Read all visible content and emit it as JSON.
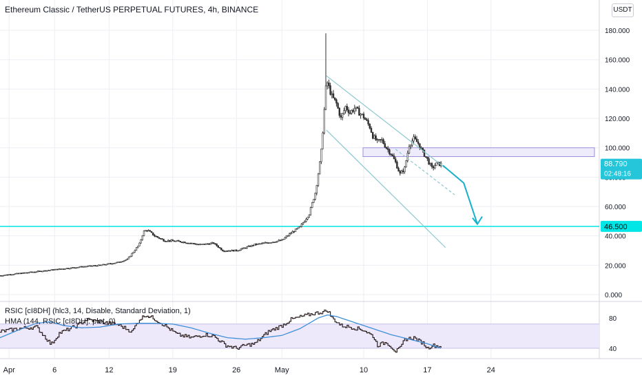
{
  "header": {
    "title": "Ethereum Classic / TetherUS PERPETUAL FUTURES, 4h, BINANCE",
    "currency": "USDT"
  },
  "colors": {
    "up": "#26a69a",
    "down": "#ef5350",
    "candle": "#2e2e2e",
    "channel": "#8cc7d0",
    "cyan": "#00e5e5",
    "zone_fill": "#ece9fb",
    "zone_border": "#9c8ed9",
    "arrow": "#17b1c9",
    "rsi_line": "#2b1e1e",
    "rsi_signal": "#3f8fd8",
    "rsi_band": "#ede9fb"
  },
  "indicators": {
    "rsi_label": "RSIC [cI8DH] (hlc3, 14, Disable, Standard Deviation, 1)",
    "hma_label": "HMA (144, RSIC [cI8DH]: plot_0)"
  },
  "price_badges": {
    "last_price": "88.790",
    "countdown": "02:48:16",
    "level": "46.500"
  },
  "chart_data": [
    {
      "type": "candlestick",
      "title": "Ethereum Classic / TetherUS PERPETUAL FUTURES, 4h, BINANCE",
      "y_ticks": [
        "0.000",
        "20.000",
        "40.000",
        "60.000",
        "80.000",
        "100.000",
        "120.000",
        "140.000",
        "160.000",
        "180.000"
      ],
      "x_ticks": [
        "Apr",
        "6",
        "12",
        "19",
        "26",
        "May",
        "10",
        "17",
        "24"
      ],
      "x_tick_days": [
        1,
        6,
        12,
        19,
        26,
        31,
        40,
        47,
        54
      ],
      "ylim": [
        0,
        180
      ],
      "grid": true,
      "anchors_day_close": [
        [
          0,
          13
        ],
        [
          3,
          15
        ],
        [
          6,
          17
        ],
        [
          9,
          19
        ],
        [
          11,
          20
        ],
        [
          13,
          22
        ],
        [
          14,
          24
        ],
        [
          15.3,
          34
        ],
        [
          15.8,
          43
        ],
        [
          16.2,
          44
        ],
        [
          17,
          40
        ],
        [
          18,
          37
        ],
        [
          20,
          36
        ],
        [
          22,
          34
        ],
        [
          23.5,
          35
        ],
        [
          24.5,
          30
        ],
        [
          26,
          30
        ],
        [
          28,
          34
        ],
        [
          30,
          36
        ],
        [
          31,
          37
        ],
        [
          32,
          42
        ],
        [
          33,
          46
        ],
        [
          34,
          55
        ],
        [
          34.7,
          70
        ],
        [
          35.3,
          95
        ],
        [
          35.6,
          120
        ],
        [
          35.9,
          146
        ],
        [
          36.5,
          135
        ],
        [
          37,
          130
        ],
        [
          37.5,
          120
        ],
        [
          38,
          128
        ],
        [
          38.5,
          124
        ],
        [
          39,
          127
        ],
        [
          40,
          121
        ],
        [
          40.7,
          114
        ],
        [
          41,
          108
        ],
        [
          41.5,
          104
        ],
        [
          42,
          105
        ],
        [
          42.5,
          100
        ],
        [
          43,
          96
        ],
        [
          43.5,
          90
        ],
        [
          44,
          82
        ],
        [
          44.5,
          86
        ],
        [
          45,
          102
        ],
        [
          45.5,
          106
        ],
        [
          46,
          103
        ],
        [
          46.5,
          97
        ],
        [
          47,
          92
        ],
        [
          47.5,
          86
        ],
        [
          48,
          89
        ],
        [
          48.5,
          88.79
        ]
      ],
      "spike_high": 178,
      "spike_day": 35.9,
      "last_price": 88.79,
      "support_level": 46.5,
      "resistance_zone": [
        94,
        100
      ],
      "zone_days": [
        35.5,
        55.5
      ],
      "channel_upper": [
        [
          35.9,
          149
        ],
        [
          49,
          86
        ]
      ],
      "channel_lower": [
        [
          35.9,
          112
        ],
        [
          49,
          32
        ]
      ],
      "channel_mid": [
        [
          43.5,
          99
        ],
        [
          50,
          68
        ]
      ],
      "projection": [
        [
          48.7,
          88
        ],
        [
          51,
          76
        ],
        [
          52.5,
          48
        ]
      ]
    },
    {
      "type": "line",
      "title": "RSIC [cI8DH] (hlc3, 14, Disable, Standard Deviation, 1)",
      "y_ticks": [
        "40",
        "80"
      ],
      "ylim": [
        30,
        92
      ],
      "band": [
        40,
        72
      ],
      "series": [
        {
          "name": "RSIC [cI8DH]",
          "anchors": [
            [
              0,
              62
            ],
            [
              2,
              66
            ],
            [
              4,
              68
            ],
            [
              5,
              54
            ],
            [
              5.6,
              45
            ],
            [
              6.5,
              60
            ],
            [
              8.5,
              70
            ],
            [
              9.5,
              78
            ],
            [
              11,
              75
            ],
            [
              13,
              71
            ],
            [
              14.5,
              62
            ],
            [
              15.3,
              78
            ],
            [
              16,
              84
            ],
            [
              16.8,
              80
            ],
            [
              18,
              71
            ],
            [
              19.5,
              58
            ],
            [
              21,
              54
            ],
            [
              22.5,
              58
            ],
            [
              23.5,
              56
            ],
            [
              24.8,
              44
            ],
            [
              26,
              40
            ],
            [
              27,
              44
            ],
            [
              28,
              46
            ],
            [
              29.5,
              62
            ],
            [
              31,
              70
            ],
            [
              32,
              78
            ],
            [
              33.5,
              83
            ],
            [
              34.5,
              86
            ],
            [
              35.5,
              88
            ],
            [
              36,
              90
            ],
            [
              36.5,
              80
            ],
            [
              37.5,
              70
            ],
            [
              38.5,
              68
            ],
            [
              40,
              64
            ],
            [
              41,
              56
            ],
            [
              41.5,
              44
            ],
            [
              42.5,
              48
            ],
            [
              43.5,
              36
            ],
            [
              44,
              40
            ],
            [
              44.5,
              52
            ],
            [
              45.5,
              54
            ],
            [
              46,
              50
            ],
            [
              46.5,
              47
            ],
            [
              47,
              40
            ],
            [
              47.5,
              44
            ],
            [
              48.5,
              42
            ]
          ]
        },
        {
          "name": "HMA (144, RSIC [cI8DH]: plot_0)",
          "anchors": [
            [
              0,
              54
            ],
            [
              2,
              64
            ],
            [
              4,
              73
            ],
            [
              5.5,
              75
            ],
            [
              7,
              70
            ],
            [
              9,
              67
            ],
            [
              11,
              68
            ],
            [
              13,
              72
            ],
            [
              15,
              73
            ],
            [
              17,
              73
            ],
            [
              19,
              72
            ],
            [
              21,
              67
            ],
            [
              23,
              60
            ],
            [
              25,
              54
            ],
            [
              27,
              52
            ],
            [
              29,
              54
            ],
            [
              31,
              57
            ],
            [
              33,
              66
            ],
            [
              35,
              80
            ],
            [
              36,
              84
            ],
            [
              37,
              82
            ],
            [
              39,
              74
            ],
            [
              41,
              66
            ],
            [
              43,
              58
            ],
            [
              45,
              52
            ],
            [
              47,
              46
            ],
            [
              48.5,
              40
            ]
          ]
        }
      ]
    }
  ]
}
